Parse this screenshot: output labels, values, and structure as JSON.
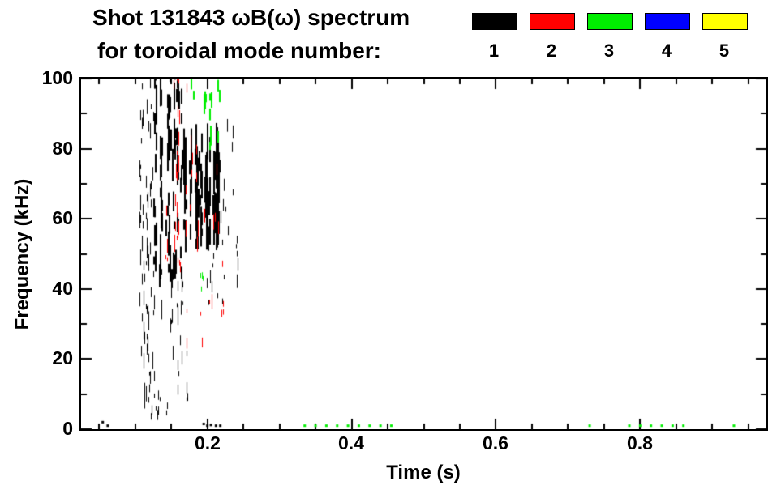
{
  "chart_data": {
    "type": "scatter",
    "title": "Shot 131843 ωB(ω) spectrum",
    "subtitle": "for toroidal mode number:",
    "xlabel": "Time (s)",
    "ylabel": "Frequency (kHz)",
    "xlim": [
      0.025,
      0.975
    ],
    "ylim": [
      0,
      100
    ],
    "x_major_ticks": [
      0.2,
      0.4,
      0.6,
      0.8
    ],
    "x_tick_labels": [
      "0.2",
      "0.4",
      "0.6",
      "0.8"
    ],
    "x_minor_step": 0.05,
    "y_major_ticks": [
      0,
      20,
      40,
      60,
      80,
      100
    ],
    "y_tick_labels": [
      "0",
      "20",
      "40",
      "60",
      "80",
      "100"
    ],
    "y_minor_step": 10,
    "grid": false,
    "legend_position": "top-right",
    "seed": 42,
    "series": [
      {
        "label": "1",
        "color": "#000000",
        "clusters": [
          {
            "t": [
              0.105,
              0.125
            ],
            "f": [
              5,
              98
            ],
            "streaks": 10,
            "segs": 7,
            "len": [
              1,
              5
            ],
            "w": 1
          },
          {
            "t": [
              0.122,
              0.165
            ],
            "f": [
              40,
              100
            ],
            "streaks": 14,
            "segs": 7,
            "len": [
              2,
              7
            ],
            "w": 2
          },
          {
            "t": [
              0.128,
              0.175
            ],
            "f": [
              8,
              45
            ],
            "streaks": 8,
            "segs": 4,
            "len": [
              1,
              4
            ],
            "w": 1
          },
          {
            "t": [
              0.165,
              0.215
            ],
            "f": [
              50,
              80
            ],
            "streaks": 16,
            "segs": 9,
            "len": [
              2,
              9
            ],
            "w": 2
          },
          {
            "t": [
              0.185,
              0.245
            ],
            "f": [
              35,
              55
            ],
            "streaks": 8,
            "segs": 3,
            "len": [
              1,
              4
            ],
            "w": 1
          },
          {
            "t": [
              0.11,
              0.145
            ],
            "f": [
              0,
              12
            ],
            "streaks": 6,
            "segs": 2,
            "len": [
              1,
              3
            ],
            "w": 1
          },
          {
            "t": [
              0.21,
              0.25
            ],
            "f": [
              55,
              85
            ],
            "streaks": 5,
            "segs": 3,
            "len": [
              1,
              4
            ],
            "w": 1
          }
        ],
        "points": [
          [
            0.055,
            2
          ],
          [
            0.062,
            1
          ],
          [
            0.195,
            1.5
          ],
          [
            0.2,
            1
          ],
          [
            0.205,
            1.2
          ],
          [
            0.212,
            1
          ],
          [
            0.218,
            1
          ]
        ]
      },
      {
        "label": "2",
        "color": "#ff0000",
        "clusters": [
          {
            "t": [
              0.135,
              0.185
            ],
            "f": [
              45,
              100
            ],
            "streaks": 9,
            "segs": 4,
            "len": [
              1,
              5
            ],
            "w": 1
          },
          {
            "t": [
              0.15,
              0.225
            ],
            "f": [
              20,
              48
            ],
            "streaks": 7,
            "segs": 2,
            "len": [
              1,
              3
            ],
            "w": 1
          },
          {
            "t": [
              0.19,
              0.215
            ],
            "f": [
              55,
              75
            ],
            "streaks": 3,
            "segs": 3,
            "len": [
              2,
              4
            ],
            "w": 1
          }
        ],
        "points": []
      },
      {
        "label": "3",
        "color": "#00ee00",
        "clusters": [
          {
            "t": [
              0.178,
              0.215
            ],
            "f": [
              78,
              100
            ],
            "streaks": 5,
            "segs": 3,
            "len": [
              2,
              6
            ],
            "w": 2
          },
          {
            "t": [
              0.19,
              0.212
            ],
            "f": [
              30,
              44
            ],
            "streaks": 2,
            "segs": 2,
            "len": [
              1,
              2
            ],
            "w": 1
          }
        ],
        "points": [
          [
            0.335,
            1
          ],
          [
            0.35,
            1
          ],
          [
            0.365,
            1
          ],
          [
            0.38,
            1
          ],
          [
            0.395,
            1
          ],
          [
            0.41,
            1
          ],
          [
            0.425,
            1
          ],
          [
            0.44,
            1
          ],
          [
            0.455,
            1
          ],
          [
            0.73,
            1
          ],
          [
            0.785,
            1
          ],
          [
            0.8,
            1
          ],
          [
            0.815,
            1
          ],
          [
            0.83,
            1
          ],
          [
            0.845,
            1
          ],
          [
            0.86,
            1
          ],
          [
            0.93,
            1
          ]
        ]
      },
      {
        "label": "4",
        "color": "#0000ff",
        "clusters": [],
        "points": []
      },
      {
        "label": "5",
        "color": "#ffff00",
        "clusters": [],
        "points": []
      }
    ]
  }
}
